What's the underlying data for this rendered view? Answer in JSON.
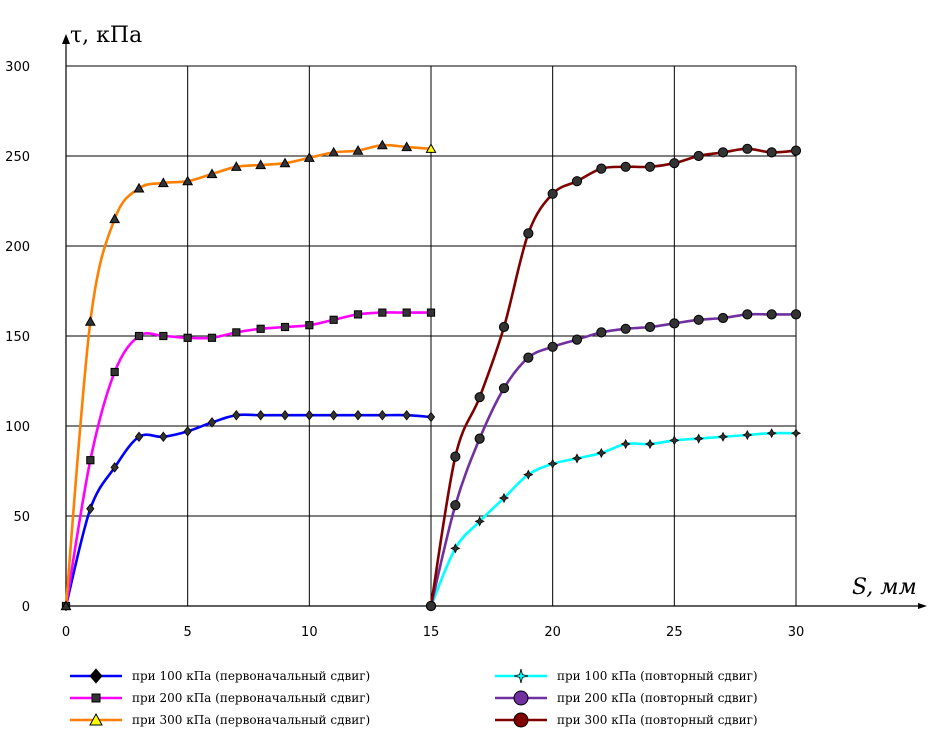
{
  "chart_data": {
    "type": "line",
    "title": "",
    "ylabel": "τ, кПа",
    "xlabel": "S, мм",
    "xlim": [
      0,
      30
    ],
    "ylim": [
      0,
      300
    ],
    "x_ticks": [
      0,
      5,
      10,
      15,
      20,
      25,
      30
    ],
    "y_ticks": [
      0,
      50,
      100,
      150,
      200,
      250,
      300
    ],
    "grid": true,
    "legend_position": "bottom",
    "series": [
      {
        "name": "при 100 кПа (первоначальный сдвиг)",
        "color": "#0000ff",
        "marker": "diamond",
        "x": [
          0,
          1,
          2,
          3,
          4,
          5,
          6,
          7,
          8,
          9,
          10,
          11,
          12,
          13,
          14,
          15
        ],
        "y": [
          0,
          54,
          77,
          94,
          94,
          97,
          102,
          106,
          106,
          106,
          106,
          106,
          106,
          106,
          106,
          105
        ]
      },
      {
        "name": "при 200 кПа (первоначальный сдвиг)",
        "color": "#ff00ff",
        "marker": "square",
        "x": [
          0,
          1,
          2,
          3,
          4,
          5,
          6,
          7,
          8,
          9,
          10,
          11,
          12,
          13,
          14,
          15
        ],
        "y": [
          0,
          81,
          130,
          150,
          150,
          149,
          149,
          152,
          154,
          155,
          156,
          159,
          162,
          163,
          163,
          163
        ]
      },
      {
        "name": "при 300 кПа (первоначальный сдвиг)",
        "color": "#ff8000",
        "marker": "triangle",
        "x": [
          0,
          1,
          2,
          3,
          4,
          5,
          6,
          7,
          8,
          9,
          10,
          11,
          12,
          13,
          14,
          15
        ],
        "y": [
          0,
          158,
          215,
          232,
          235,
          236,
          240,
          244,
          245,
          246,
          249,
          252,
          253,
          256,
          255,
          254
        ]
      },
      {
        "name": "при 100 кПа (повторный сдвиг)",
        "color": "#00ffff",
        "marker": "star",
        "x": [
          15,
          16,
          17,
          18,
          19,
          20,
          21,
          22,
          23,
          24,
          25,
          26,
          27,
          28,
          29,
          30
        ],
        "y": [
          0,
          32,
          47,
          60,
          73,
          79,
          82,
          85,
          90,
          90,
          92,
          93,
          94,
          95,
          96,
          96
        ]
      },
      {
        "name": "при 200 кПа (повторный сдвиг)",
        "color": "#7030a0",
        "marker": "circle",
        "x": [
          15,
          16,
          17,
          18,
          19,
          20,
          21,
          22,
          23,
          24,
          25,
          26,
          27,
          28,
          29,
          30
        ],
        "y": [
          0,
          56,
          93,
          121,
          138,
          144,
          148,
          152,
          154,
          155,
          157,
          159,
          160,
          162,
          162,
          162
        ]
      },
      {
        "name": "при 300 кПа (повторный сдвиг)",
        "color": "#800000",
        "marker": "circle",
        "x": [
          15,
          16,
          17,
          18,
          19,
          20,
          21,
          22,
          23,
          24,
          25,
          26,
          27,
          28,
          29,
          30
        ],
        "y": [
          0,
          83,
          116,
          155,
          207,
          229,
          236,
          243,
          244,
          244,
          246,
          250,
          252,
          254,
          252,
          253
        ]
      }
    ]
  }
}
